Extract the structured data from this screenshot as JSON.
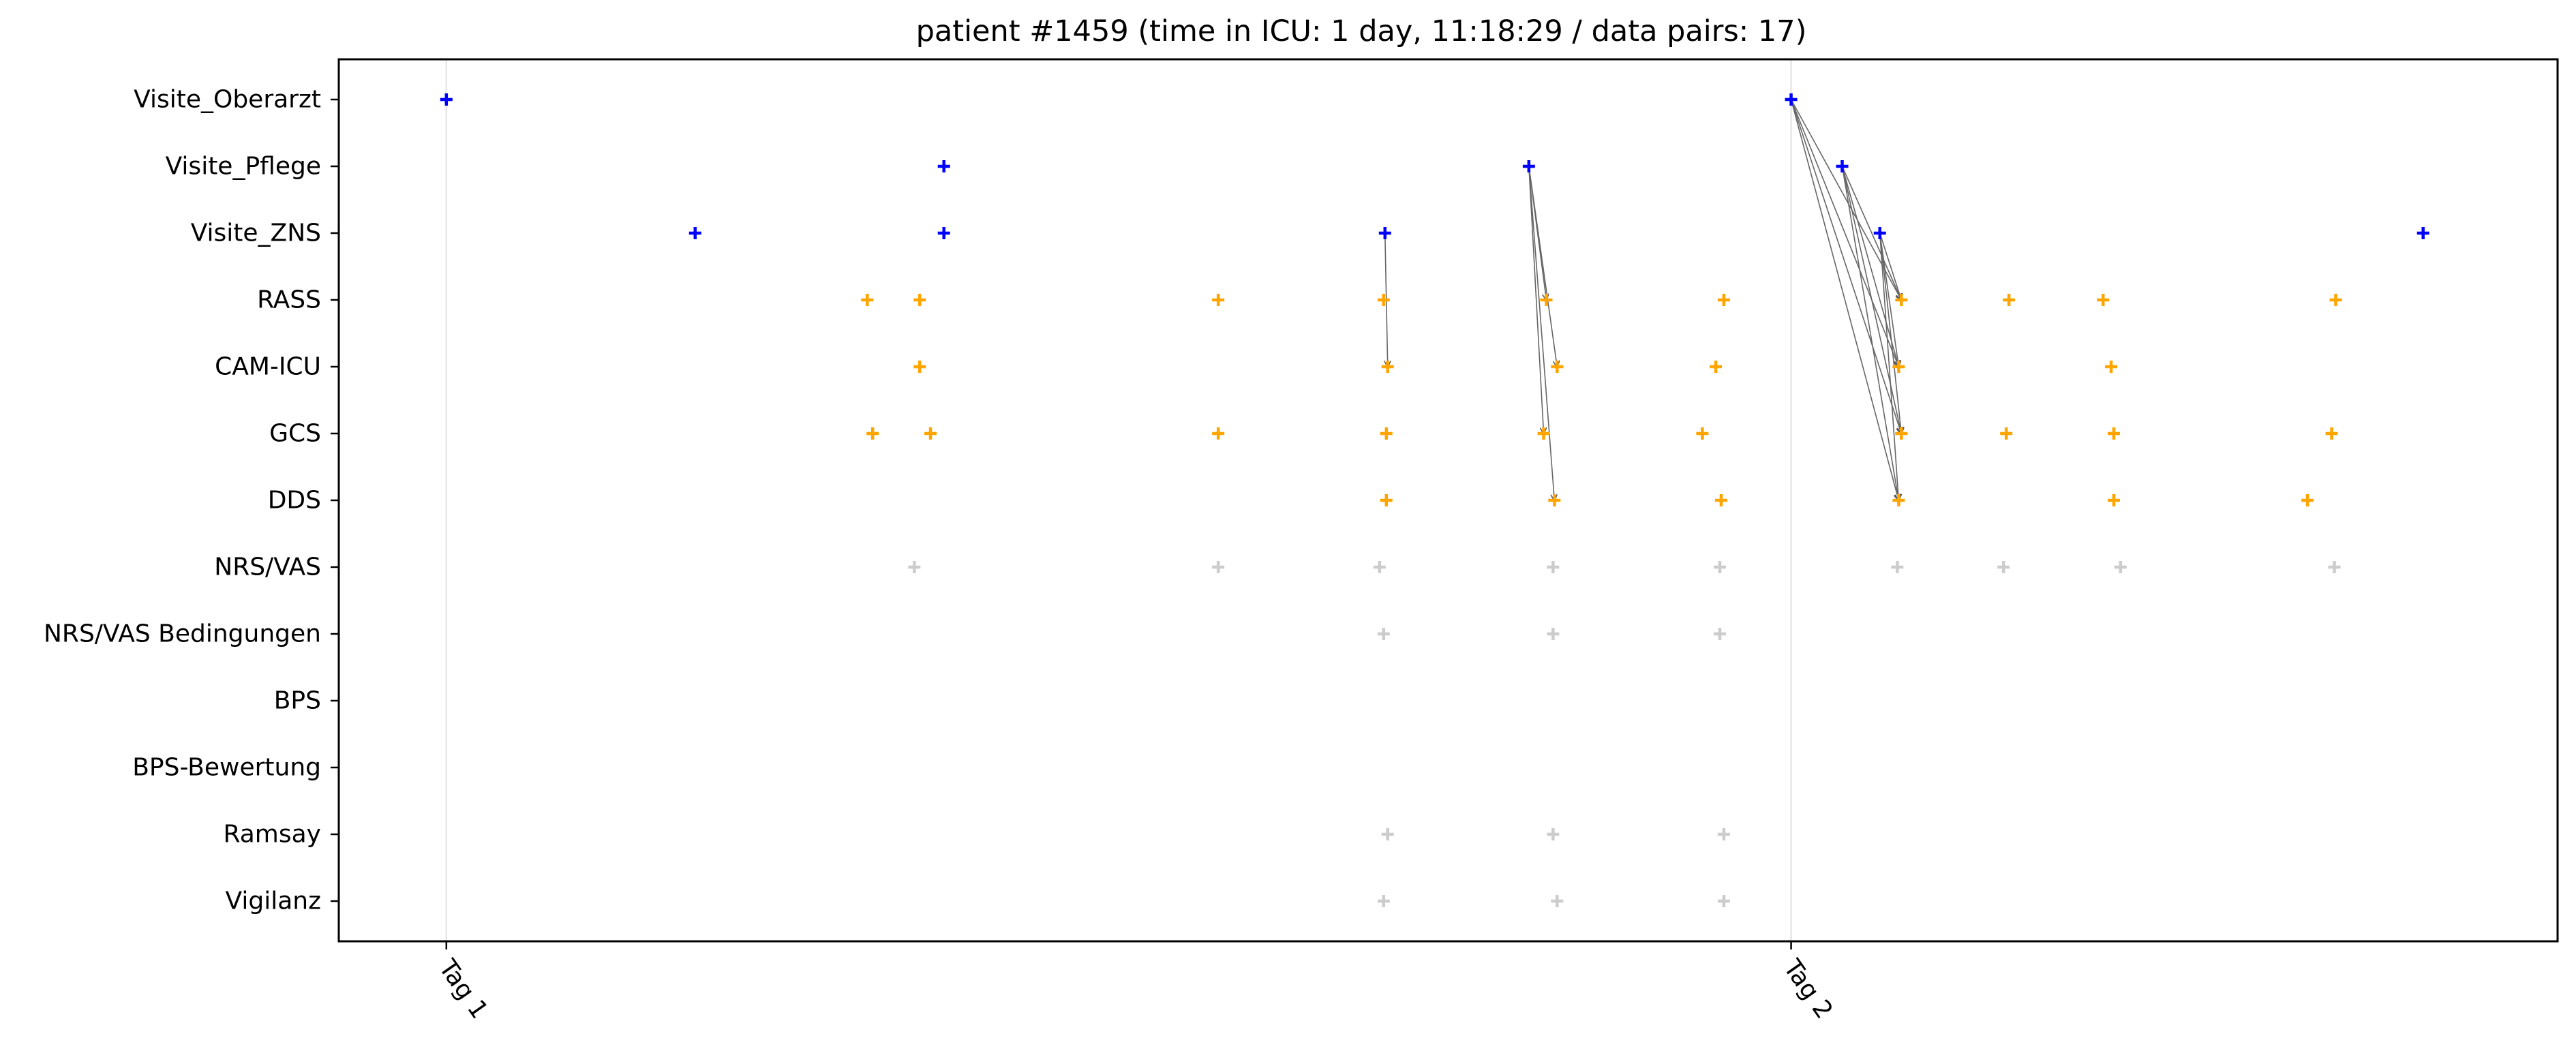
{
  "chart_data": {
    "type": "scatter",
    "title": "patient #1459 (time in ICU: 1 day, 11:18:29 / data pairs: 17)",
    "xlabel": "",
    "ylabel": "",
    "xlim": [
      -0.08,
      1.57
    ],
    "x_ticks": [
      {
        "value": 0.0,
        "label": "Tag 1"
      },
      {
        "value": 1.0,
        "label": "Tag 2"
      }
    ],
    "categories": [
      "Visite_Oberarzt",
      "Visite_Pflege",
      "Visite_ZNS",
      "RASS",
      "CAM-ICU",
      "GCS",
      "DDS",
      "NRS/VAS",
      "NRS/VAS Bedingungen",
      "BPS",
      "BPS-Bewertung",
      "Ramsay",
      "Vigilanz"
    ],
    "grid": {
      "x": true,
      "y": false
    },
    "marker": "plus",
    "colors": {
      "visits": "#0000ff",
      "assessments": "#ffa500",
      "other": "#cccccc",
      "arrows": "#666666"
    },
    "series": [
      {
        "category": "Visite_Oberarzt",
        "color": "#0000ff",
        "x": [
          0.0,
          1.0
        ]
      },
      {
        "category": "Visite_Pflege",
        "color": "#0000ff",
        "x": [
          0.37,
          0.805,
          1.038
        ]
      },
      {
        "category": "Visite_ZNS",
        "color": "#0000ff",
        "x": [
          0.185,
          0.37,
          0.698,
          1.066,
          1.47
        ]
      },
      {
        "category": "RASS",
        "color": "#ffa500",
        "x": [
          0.313,
          0.352,
          0.574,
          0.697,
          0.818,
          0.95,
          1.082,
          1.162,
          1.232,
          1.405
        ]
      },
      {
        "category": "CAM-ICU",
        "color": "#ffa500",
        "x": [
          0.352,
          0.7,
          0.826,
          0.944,
          1.08,
          1.238
        ]
      },
      {
        "category": "GCS",
        "color": "#ffa500",
        "x": [
          0.317,
          0.36,
          0.574,
          0.699,
          0.816,
          0.934,
          1.082,
          1.16,
          1.24,
          1.402
        ]
      },
      {
        "category": "DDS",
        "color": "#ffa500",
        "x": [
          0.699,
          0.824,
          0.948,
          1.08,
          1.24,
          1.384
        ]
      },
      {
        "category": "NRS/VAS",
        "color": "#cccccc",
        "x": [
          0.348,
          0.574,
          0.694,
          0.823,
          0.947,
          1.079,
          1.158,
          1.245,
          1.404
        ]
      },
      {
        "category": "NRS/VAS Bedingungen",
        "color": "#cccccc",
        "x": [
          0.697,
          0.823,
          0.947
        ]
      },
      {
        "category": "BPS",
        "color": "#cccccc",
        "x": []
      },
      {
        "category": "BPS-Bewertung",
        "color": "#cccccc",
        "x": []
      },
      {
        "category": "Ramsay",
        "color": "#cccccc",
        "x": [
          0.7,
          0.823,
          0.95
        ]
      },
      {
        "category": "Vigilanz",
        "color": "#cccccc",
        "x": [
          0.697,
          0.826,
          0.95
        ]
      }
    ],
    "arrows": [
      {
        "from": {
          "category": "Visite_ZNS",
          "x": 0.698
        },
        "to": {
          "category": "CAM-ICU",
          "x": 0.7
        }
      },
      {
        "from": {
          "category": "Visite_Pflege",
          "x": 0.805
        },
        "to": {
          "category": "RASS",
          "x": 0.818
        }
      },
      {
        "from": {
          "category": "Visite_Pflege",
          "x": 0.805
        },
        "to": {
          "category": "CAM-ICU",
          "x": 0.826
        }
      },
      {
        "from": {
          "category": "Visite_Pflege",
          "x": 0.805
        },
        "to": {
          "category": "GCS",
          "x": 0.816
        }
      },
      {
        "from": {
          "category": "Visite_Pflege",
          "x": 0.805
        },
        "to": {
          "category": "DDS",
          "x": 0.824
        }
      },
      {
        "from": {
          "category": "Visite_Oberarzt",
          "x": 1.0
        },
        "to": {
          "category": "RASS",
          "x": 1.082
        }
      },
      {
        "from": {
          "category": "Visite_Oberarzt",
          "x": 1.0
        },
        "to": {
          "category": "CAM-ICU",
          "x": 1.08
        }
      },
      {
        "from": {
          "category": "Visite_Oberarzt",
          "x": 1.0
        },
        "to": {
          "category": "GCS",
          "x": 1.082
        }
      },
      {
        "from": {
          "category": "Visite_Oberarzt",
          "x": 1.0
        },
        "to": {
          "category": "DDS",
          "x": 1.08
        }
      },
      {
        "from": {
          "category": "Visite_Pflege",
          "x": 1.038
        },
        "to": {
          "category": "RASS",
          "x": 1.082
        }
      },
      {
        "from": {
          "category": "Visite_Pflege",
          "x": 1.038
        },
        "to": {
          "category": "CAM-ICU",
          "x": 1.08
        }
      },
      {
        "from": {
          "category": "Visite_Pflege",
          "x": 1.038
        },
        "to": {
          "category": "GCS",
          "x": 1.082
        }
      },
      {
        "from": {
          "category": "Visite_Pflege",
          "x": 1.038
        },
        "to": {
          "category": "DDS",
          "x": 1.08
        }
      },
      {
        "from": {
          "category": "Visite_ZNS",
          "x": 1.066
        },
        "to": {
          "category": "RASS",
          "x": 1.082
        }
      },
      {
        "from": {
          "category": "Visite_ZNS",
          "x": 1.066
        },
        "to": {
          "category": "CAM-ICU",
          "x": 1.08
        }
      },
      {
        "from": {
          "category": "Visite_ZNS",
          "x": 1.066
        },
        "to": {
          "category": "GCS",
          "x": 1.082
        }
      },
      {
        "from": {
          "category": "Visite_ZNS",
          "x": 1.066
        },
        "to": {
          "category": "DDS",
          "x": 1.08
        }
      }
    ]
  }
}
